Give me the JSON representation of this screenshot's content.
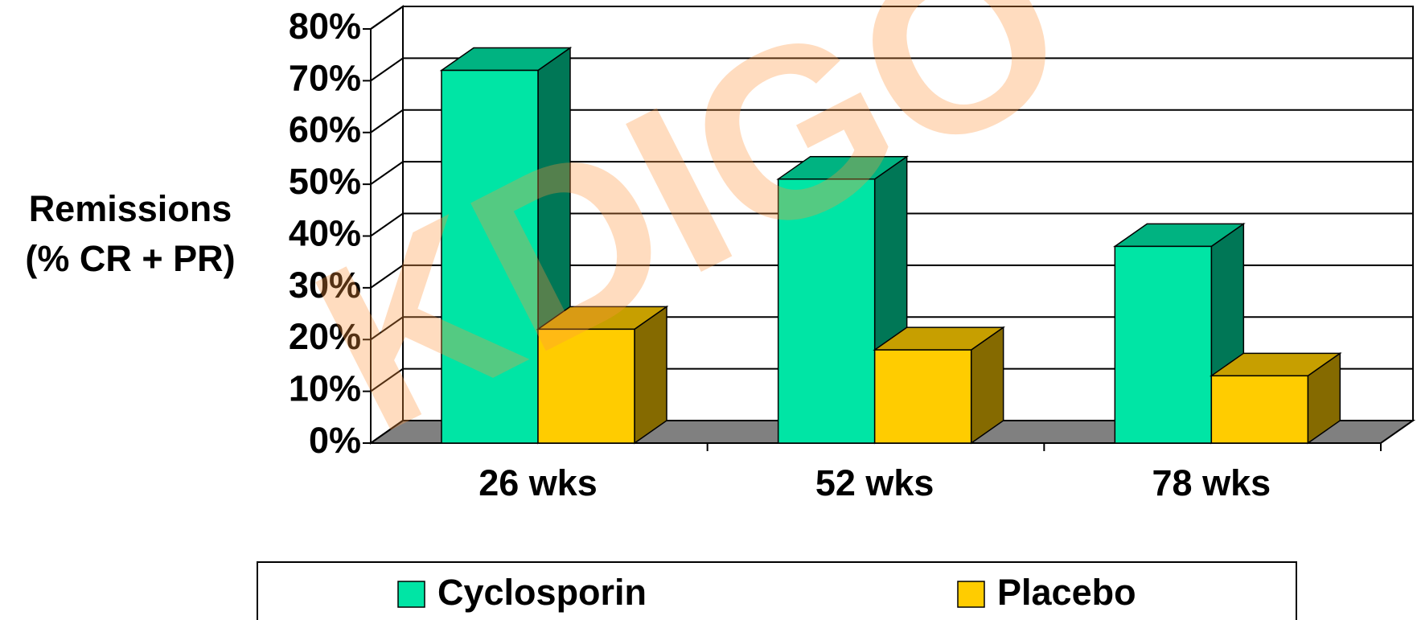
{
  "chart_data": {
    "type": "bar3d",
    "y_label": [
      "Remissions",
      "(% CR + PR)"
    ],
    "categories": [
      "26 wks",
      "52 wks",
      "78 wks"
    ],
    "series": [
      {
        "name": "Cyclosporin",
        "color": "#00e5a5",
        "values": [
          72,
          51,
          38
        ]
      },
      {
        "name": "Placebo",
        "color": "#ffcc00",
        "values": [
          22,
          18,
          13
        ]
      }
    ],
    "ylim": [
      0,
      80
    ],
    "yticks": [
      {
        "value": 0,
        "label": "0%"
      },
      {
        "value": 10,
        "label": "10%"
      },
      {
        "value": 20,
        "label": "20%"
      },
      {
        "value": 30,
        "label": "30%"
      },
      {
        "value": 40,
        "label": "40%"
      },
      {
        "value": 50,
        "label": "50%"
      },
      {
        "value": 60,
        "label": "60%"
      },
      {
        "value": 70,
        "label": "70%"
      },
      {
        "value": 80,
        "label": "80%"
      }
    ],
    "grid": true,
    "watermark": "KDIGO"
  }
}
